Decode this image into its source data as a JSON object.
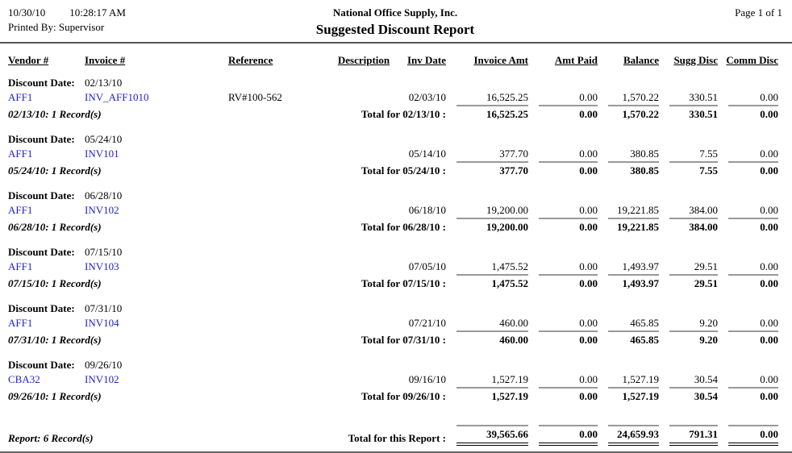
{
  "page": {
    "date": "10/30/10",
    "time": "10:28:17 AM",
    "printed_by": "Printed By: Supervisor",
    "company": "National Office Supply, Inc.",
    "title": "Suggested Discount Report",
    "page_label": "Page 1 of 1"
  },
  "columns": [
    "Vendor #",
    "Invoice #",
    "Reference",
    "Description",
    "Inv Date",
    "Invoice Amt",
    "Amt Paid",
    "Balance",
    "Sugg Disc",
    "Comm Disc"
  ],
  "groups": [
    {
      "discount_date_label": "Discount Date:",
      "discount_date": "02/13/10",
      "rows": [
        {
          "vendor": "AFF1",
          "invoice": "INV_AFF1010",
          "reference": "RV#100-562",
          "description": "",
          "inv_date": "02/03/10",
          "invoice_amt": "16,525.25",
          "amt_paid": "0.00",
          "balance": "1,570.22",
          "sugg_disc": "330.51",
          "comm_disc": "0.00"
        }
      ],
      "record_label": "02/13/10: 1 Record(s)",
      "total_label": "Total for 02/13/10 :",
      "totals": [
        "16,525.25",
        "0.00",
        "1,570.22",
        "330.51",
        "0.00"
      ]
    },
    {
      "discount_date_label": "Discount Date:",
      "discount_date": "05/24/10",
      "rows": [
        {
          "vendor": "AFF1",
          "invoice": "INV101",
          "reference": "",
          "description": "",
          "inv_date": "05/14/10",
          "invoice_amt": "377.70",
          "amt_paid": "0.00",
          "balance": "380.85",
          "sugg_disc": "7.55",
          "comm_disc": "0.00"
        }
      ],
      "record_label": "05/24/10: 1 Record(s)",
      "total_label": "Total for 05/24/10 :",
      "totals": [
        "377.70",
        "0.00",
        "380.85",
        "7.55",
        "0.00"
      ]
    },
    {
      "discount_date_label": "Discount Date:",
      "discount_date": "06/28/10",
      "rows": [
        {
          "vendor": "AFF1",
          "invoice": "INV102",
          "reference": "",
          "description": "",
          "inv_date": "06/18/10",
          "invoice_amt": "19,200.00",
          "amt_paid": "0.00",
          "balance": "19,221.85",
          "sugg_disc": "384.00",
          "comm_disc": "0.00"
        }
      ],
      "record_label": "06/28/10: 1 Record(s)",
      "total_label": "Total for 06/28/10 :",
      "totals": [
        "19,200.00",
        "0.00",
        "19,221.85",
        "384.00",
        "0.00"
      ]
    },
    {
      "discount_date_label": "Discount Date:",
      "discount_date": "07/15/10",
      "rows": [
        {
          "vendor": "AFF1",
          "invoice": "INV103",
          "reference": "",
          "description": "",
          "inv_date": "07/05/10",
          "invoice_amt": "1,475.52",
          "amt_paid": "0.00",
          "balance": "1,493.97",
          "sugg_disc": "29.51",
          "comm_disc": "0.00"
        }
      ],
      "record_label": "07/15/10: 1 Record(s)",
      "total_label": "Total for 07/15/10 :",
      "totals": [
        "1,475.52",
        "0.00",
        "1,493.97",
        "29.51",
        "0.00"
      ]
    },
    {
      "discount_date_label": "Discount Date:",
      "discount_date": "07/31/10",
      "rows": [
        {
          "vendor": "AFF1",
          "invoice": "INV104",
          "reference": "",
          "description": "",
          "inv_date": "07/21/10",
          "invoice_amt": "460.00",
          "amt_paid": "0.00",
          "balance": "465.85",
          "sugg_disc": "9.20",
          "comm_disc": "0.00"
        }
      ],
      "record_label": "07/31/10: 1 Record(s)",
      "total_label": "Total for 07/31/10 :",
      "totals": [
        "460.00",
        "0.00",
        "465.85",
        "9.20",
        "0.00"
      ]
    },
    {
      "discount_date_label": "Discount Date:",
      "discount_date": "09/26/10",
      "rows": [
        {
          "vendor": "CBA32",
          "invoice": "INV102",
          "reference": "",
          "description": "",
          "inv_date": "09/16/10",
          "invoice_amt": "1,527.19",
          "amt_paid": "0.00",
          "balance": "1,527.19",
          "sugg_disc": "30.54",
          "comm_disc": "0.00"
        }
      ],
      "record_label": "09/26/10: 1 Record(s)",
      "total_label": "Total for 09/26/10 :",
      "totals": [
        "1,527.19",
        "0.00",
        "1,527.19",
        "30.54",
        "0.00"
      ]
    }
  ],
  "report": {
    "record_label": "Report: 6 Record(s)",
    "total_label": "Total for this Report :",
    "totals": [
      "39,565.66",
      "0.00",
      "24,659.93",
      "791.31",
      "0.00"
    ]
  },
  "colors": {
    "link": "#2222cc",
    "text": "#000000",
    "rule_gray": "#999999",
    "rule_dark": "#555555"
  }
}
